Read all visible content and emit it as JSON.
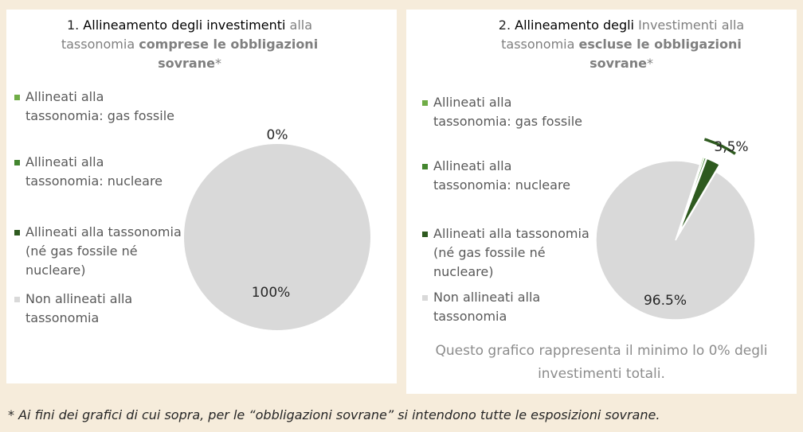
{
  "charts": [
    {
      "type": "pie",
      "title": [
        {
          "text": "1. ",
          "bold": false,
          "color": "#262626"
        },
        {
          "text": "Allineamento degli investimenti",
          "bold": false,
          "color": "#000000"
        },
        {
          "text": " alla tassonomia ",
          "bold": false,
          "color": "#7f7f7f"
        },
        {
          "text": "comprese le obbligazioni sovrane",
          "bold": true,
          "color": "#7f7f7f"
        },
        {
          "text": "*",
          "bold": false,
          "color": "#7f7f7f"
        }
      ],
      "categories": [
        "Allineati alla tassonomia: gas fossile",
        "Allineati alla tassonomia: nucleare",
        "Allineati alla tassonomia (né gas fossile né nucleare)",
        "Non allineati alla tassonomia"
      ],
      "colors": [
        "#70ad47",
        "#43862f",
        "#2e5a1f",
        "#d9d9d9"
      ],
      "values": [
        0,
        0,
        0,
        100
      ],
      "value_labels": [
        "0%",
        null,
        null,
        "100%"
      ],
      "exploded": [
        false,
        false,
        false,
        false
      ]
    },
    {
      "type": "pie",
      "title": [
        {
          "text": "2. ",
          "bold": false,
          "color": "#262626"
        },
        {
          "text": "Allineamento degli",
          "bold": false,
          "color": "#000000"
        },
        {
          "text": " Investimenti alla tassonomia ",
          "bold": false,
          "color": "#7f7f7f"
        },
        {
          "text": "escluse le obbligazioni sovrane",
          "bold": true,
          "color": "#7f7f7f"
        },
        {
          "text": "*",
          "bold": false,
          "color": "#7f7f7f"
        }
      ],
      "categories": [
        "Allineati alla tassonomia: gas fossile",
        "Allineati alla tassonomia: nucleare",
        "Allineati alla tassonomia (né gas fossile né nucleare)",
        "Non allineati alla tassonomia"
      ],
      "colors": [
        "#70ad47",
        "#43862f",
        "#2e5a1f",
        "#d9d9d9"
      ],
      "values": [
        0.3,
        0.4,
        2.8,
        96.5
      ],
      "value_labels": [
        null,
        null,
        null,
        "96.5%"
      ],
      "exploded": [
        true,
        true,
        true,
        false
      ],
      "annotation": {
        "label": "3,5%",
        "value": 3.5
      },
      "note": "Questo grafico rappresenta il minimo lo 0% degli investimenti totali."
    }
  ],
  "footnote": "* Ai fini dei grafici di cui sopra, per le “obbligazioni sovrane” si intendono tutte le esposizioni sovrane."
}
